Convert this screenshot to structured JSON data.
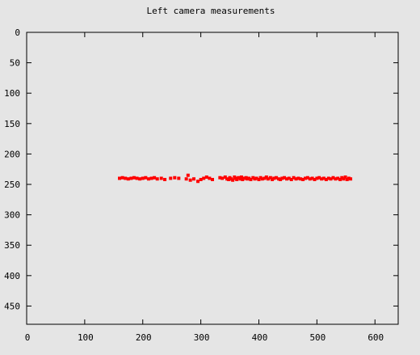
{
  "chart_data": {
    "type": "scatter",
    "title": "Left camera measurements",
    "xlabel": "",
    "ylabel": "",
    "xlim": [
      0,
      640
    ],
    "ylim": [
      0,
      480
    ],
    "y_inverted": true,
    "grid": false,
    "legend": "none",
    "colors": {
      "point": "#ff0000",
      "background": "#e5e5e5",
      "axes": "#000000"
    },
    "x_ticks": [
      0,
      100,
      200,
      300,
      400,
      500,
      600
    ],
    "y_ticks": [
      0,
      50,
      100,
      150,
      200,
      250,
      300,
      350,
      400,
      450
    ],
    "series": [
      {
        "points": [
          [
            160,
            240
          ],
          [
            165,
            239
          ],
          [
            170,
            240
          ],
          [
            175,
            241
          ],
          [
            180,
            240
          ],
          [
            185,
            239
          ],
          [
            190,
            240
          ],
          [
            195,
            241
          ],
          [
            200,
            240
          ],
          [
            205,
            239
          ],
          [
            210,
            241
          ],
          [
            215,
            240
          ],
          [
            220,
            239
          ],
          [
            225,
            241
          ],
          [
            232,
            240
          ],
          [
            238,
            242
          ],
          [
            248,
            240
          ],
          [
            255,
            239
          ],
          [
            262,
            240
          ],
          [
            275,
            241
          ],
          [
            278,
            235
          ],
          [
            282,
            243
          ],
          [
            288,
            241
          ],
          [
            295,
            245
          ],
          [
            300,
            242
          ],
          [
            305,
            240
          ],
          [
            310,
            238
          ],
          [
            315,
            240
          ],
          [
            320,
            242
          ],
          [
            333,
            239
          ],
          [
            337,
            240
          ],
          [
            342,
            238
          ],
          [
            345,
            241
          ],
          [
            348,
            242
          ],
          [
            350,
            239
          ],
          [
            352,
            241
          ],
          [
            355,
            243
          ],
          [
            358,
            238
          ],
          [
            360,
            240
          ],
          [
            362,
            242
          ],
          [
            365,
            239
          ],
          [
            368,
            241
          ],
          [
            370,
            238
          ],
          [
            372,
            242
          ],
          [
            375,
            240
          ],
          [
            378,
            239
          ],
          [
            380,
            241
          ],
          [
            383,
            240
          ],
          [
            386,
            242
          ],
          [
            390,
            239
          ],
          [
            393,
            241
          ],
          [
            396,
            240
          ],
          [
            400,
            242
          ],
          [
            403,
            239
          ],
          [
            406,
            241
          ],
          [
            410,
            240
          ],
          [
            413,
            238
          ],
          [
            416,
            241
          ],
          [
            420,
            239
          ],
          [
            423,
            242
          ],
          [
            426,
            240
          ],
          [
            430,
            239
          ],
          [
            434,
            241
          ],
          [
            437,
            242
          ],
          [
            440,
            240
          ],
          [
            444,
            239
          ],
          [
            448,
            241
          ],
          [
            452,
            240
          ],
          [
            456,
            242
          ],
          [
            460,
            239
          ],
          [
            464,
            241
          ],
          [
            468,
            240
          ],
          [
            472,
            241
          ],
          [
            476,
            242
          ],
          [
            480,
            240
          ],
          [
            484,
            239
          ],
          [
            488,
            241
          ],
          [
            492,
            240
          ],
          [
            496,
            242
          ],
          [
            500,
            240
          ],
          [
            504,
            239
          ],
          [
            508,
            241
          ],
          [
            512,
            240
          ],
          [
            516,
            242
          ],
          [
            520,
            240
          ],
          [
            524,
            241
          ],
          [
            528,
            239
          ],
          [
            532,
            241
          ],
          [
            536,
            240
          ],
          [
            540,
            242
          ],
          [
            543,
            239
          ],
          [
            546,
            241
          ],
          [
            549,
            238
          ],
          [
            552,
            242
          ],
          [
            555,
            240
          ],
          [
            558,
            241
          ]
        ]
      }
    ]
  }
}
